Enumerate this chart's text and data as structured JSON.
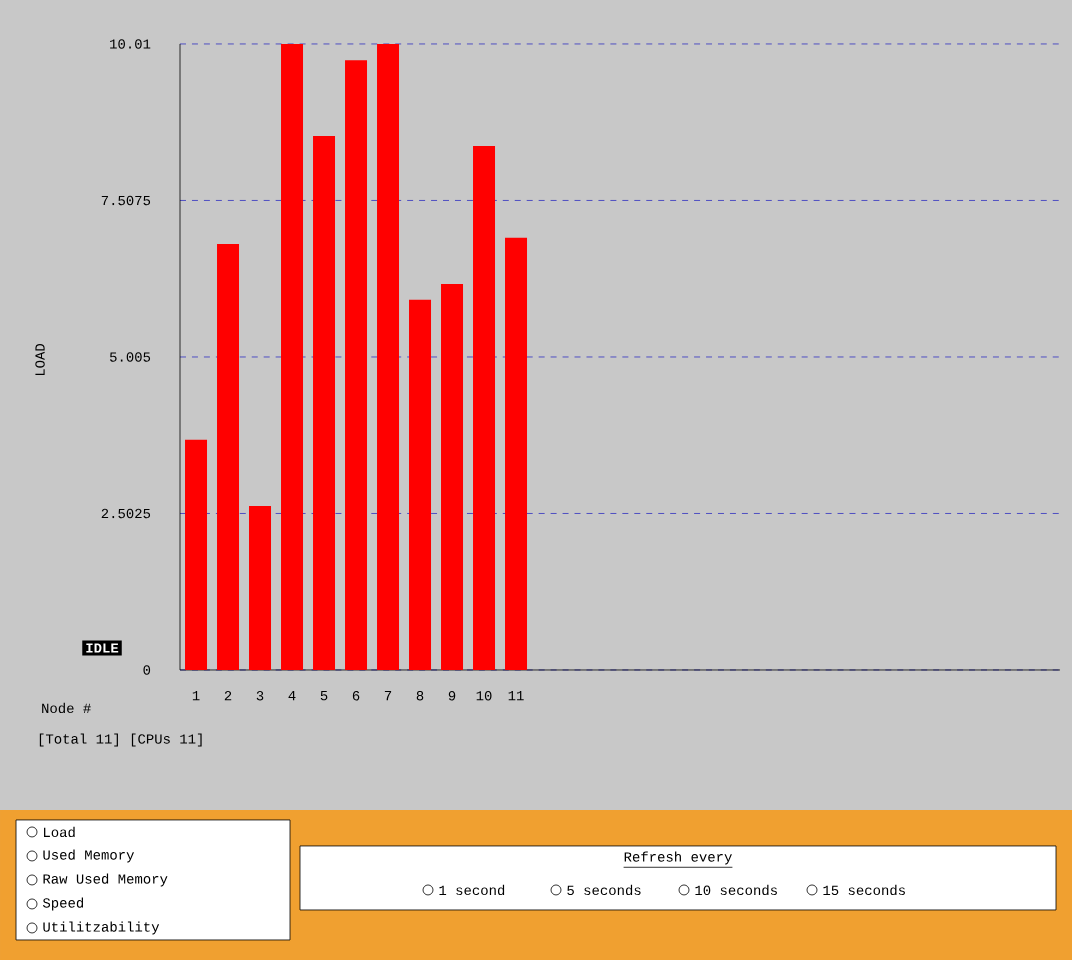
{
  "chart_data": {
    "type": "bar",
    "categories": [
      "1",
      "2",
      "3",
      "4",
      "5",
      "6",
      "7",
      "8",
      "9",
      "10",
      "11"
    ],
    "values": [
      3.68,
      6.81,
      2.62,
      10.01,
      8.54,
      9.75,
      10.01,
      5.92,
      6.17,
      8.38,
      6.91
    ],
    "color": "#ff0000",
    "ylim": [
      0,
      10.01
    ],
    "yticks": [
      0,
      2.5025,
      5.005,
      7.5075,
      10.01
    ],
    "grid": "y",
    "xlabel": "Node #",
    "ylabel": "LOAD",
    "annotations": [
      "IDLE",
      "[Total 11] [CPUs 11]",
      "Load",
      "Used Memory",
      "Raw Used Memory",
      "Speed",
      "Utilitzability",
      "Refresh every",
      "1 second",
      "5 seconds",
      "10 seconds",
      "15 seconds"
    ]
  }
}
